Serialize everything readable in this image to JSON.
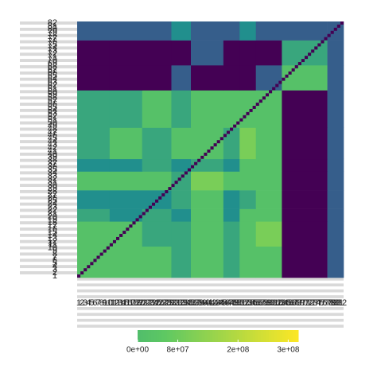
{
  "chart_data": {
    "type": "heatmap",
    "xticks": [
      1,
      2,
      3,
      4,
      5,
      6,
      7,
      8,
      9,
      10,
      11,
      12,
      13,
      14,
      15,
      16,
      17,
      18,
      19,
      20,
      21,
      22,
      23,
      24,
      25,
      26,
      27,
      28,
      29,
      30,
      31,
      32,
      33,
      34,
      35,
      36,
      37,
      38,
      39,
      40,
      41,
      42,
      43,
      44,
      45,
      46,
      47,
      48,
      49,
      50,
      51,
      52,
      53,
      54,
      55,
      56,
      57,
      58,
      59,
      60,
      61,
      62,
      63,
      64,
      65,
      66,
      67,
      68,
      69,
      70,
      71,
      72,
      73,
      74,
      75,
      76,
      77,
      78,
      79,
      80,
      81,
      82
    ],
    "yticks": [
      1,
      2,
      3,
      4,
      5,
      6,
      7,
      8,
      9,
      10,
      11,
      12,
      13,
      14,
      15,
      16,
      17,
      18,
      19,
      20,
      21,
      22,
      23,
      24,
      25,
      26,
      27,
      28,
      29,
      30,
      31,
      32,
      33,
      34,
      35,
      36,
      37,
      38,
      39,
      40,
      41,
      42,
      43,
      44,
      45,
      46,
      47,
      48,
      49,
      50,
      51,
      52,
      53,
      54,
      55,
      56,
      57,
      58,
      59,
      60,
      61,
      62,
      63,
      64,
      65,
      66,
      67,
      68,
      69,
      70,
      71,
      72,
      73,
      74,
      75,
      76,
      77,
      78,
      79,
      80,
      81,
      82
    ],
    "xlim": [
      0.5,
      82.5
    ],
    "ylim": [
      0.5,
      82.5
    ],
    "xbins": [
      0.5,
      10.5,
      20.5,
      29.5,
      35.5,
      45.5,
      50.5,
      55.5,
      63.5,
      77.5,
      82.5
    ],
    "ybins": [
      0.5,
      10.5,
      18.5,
      22.5,
      28.5,
      34.5,
      38.5,
      48.5,
      60.5,
      68.5,
      76.5,
      82.5
    ],
    "values": [
      [
        20000000.0,
        20000000.0,
        20000000.0,
        -110000000.0,
        20000000.0,
        -110000000.0,
        20000000.0,
        20000000.0,
        -750000000.0,
        -430000000.0
      ],
      [
        20000000.0,
        20000000.0,
        -110000000.0,
        -110000000.0,
        20000000.0,
        -110000000.0,
        20000000.0,
        100000000.0,
        -750000000.0,
        -430000000.0
      ],
      [
        -110000000.0,
        -220000000.0,
        -110000000.0,
        -220000000.0,
        20000000.0,
        -220000000.0,
        20000000.0,
        20000000.0,
        -750000000.0,
        -430000000.0
      ],
      [
        -220000000.0,
        -220000000.0,
        -220000000.0,
        -110000000.0,
        20000000.0,
        -220000000.0,
        -110000000.0,
        20000000.0,
        -750000000.0,
        -430000000.0
      ],
      [
        20000000.0,
        20000000.0,
        20000000.0,
        -110000000.0,
        100000000.0,
        20000000.0,
        20000000.0,
        20000000.0,
        -750000000.0,
        -430000000.0
      ],
      [
        -220000000.0,
        -220000000.0,
        -110000000.0,
        -220000000.0,
        -110000000.0,
        -220000000.0,
        20000000.0,
        20000000.0,
        -750000000.0,
        -430000000.0
      ],
      [
        -110000000.0,
        20000000.0,
        -110000000.0,
        20000000.0,
        20000000.0,
        -110000000.0,
        100000000.0,
        20000000.0,
        -750000000.0,
        -430000000.0
      ],
      [
        -110000000.0,
        -110000000.0,
        20000000.0,
        -110000000.0,
        20000000.0,
        20000000.0,
        20000000.0,
        20000000.0,
        -750000000.0,
        -430000000.0
      ],
      [
        -750000000.0,
        -750000000.0,
        -750000000.0,
        -430000000.0,
        -750000000.0,
        -750000000.0,
        -750000000.0,
        -430000000.0,
        20000000.0,
        -430000000.0
      ],
      [
        -750000000.0,
        -750000000.0,
        -750000000.0,
        -750000000.0,
        -430000000.0,
        -750000000.0,
        -750000000.0,
        -750000000.0,
        -110000000.0,
        -430000000.0
      ],
      [
        -430000000.0,
        -430000000.0,
        -430000000.0,
        -220000000.0,
        -430000000.0,
        -430000000.0,
        -220000000.0,
        -430000000.0,
        -430000000.0,
        -430000000.0
      ]
    ],
    "diagonal": [
      -750000000.0,
      -750000000.0,
      -750000000.0,
      -750000000.0,
      -750000000.0,
      -750000000.0,
      -750000000.0,
      -750000000.0,
      -750000000.0,
      -750000000.0,
      -750000000.0,
      -750000000.0,
      -750000000.0,
      -750000000.0,
      -750000000.0,
      -750000000.0,
      -750000000.0,
      -750000000.0,
      -750000000.0,
      -750000000.0,
      -750000000.0,
      -750000000.0,
      -750000000.0,
      -750000000.0,
      -750000000.0,
      -750000000.0,
      -750000000.0,
      -750000000.0,
      -750000000.0,
      -750000000.0,
      -750000000.0,
      -750000000.0,
      -750000000.0,
      -750000000.0,
      -750000000.0,
      -750000000.0,
      -750000000.0,
      -750000000.0,
      -750000000.0,
      -750000000.0,
      -750000000.0,
      -750000000.0,
      -750000000.0,
      -750000000.0,
      -750000000.0,
      -750000000.0,
      -750000000.0,
      -750000000.0,
      -750000000.0,
      -750000000.0,
      -750000000.0,
      -750000000.0,
      -750000000.0,
      -750000000.0,
      -750000000.0,
      -750000000.0,
      -750000000.0,
      -750000000.0,
      -750000000.0,
      -750000000.0,
      -750000000.0,
      -750000000.0,
      -750000000.0,
      -750000000.0,
      -750000000.0,
      -750000000.0,
      -750000000.0,
      -750000000.0,
      -750000000.0,
      -750000000.0,
      -750000000.0,
      -750000000.0,
      -750000000.0,
      -750000000.0,
      -750000000.0,
      -750000000.0,
      -750000000.0,
      -750000000.0,
      -750000000.0,
      -750000000.0,
      -750000000.0,
      -750000000.0
    ],
    "zlim": [
      -750000000.0,
      320000000.0
    ],
    "colormap": [
      "#440154",
      "#3b528b",
      "#21908d",
      "#5dc863",
      "#fde725"
    ],
    "colorbar_lim": [
      0,
      320000000.0
    ],
    "colorbar_ticks": [
      {
        "value": 0,
        "label": "0e+00"
      },
      {
        "value": 80000000,
        "label": "8e+07"
      },
      {
        "value": 200000000,
        "label": "2e+08"
      },
      {
        "value": 300000000,
        "label": "3e+08"
      }
    ]
  }
}
